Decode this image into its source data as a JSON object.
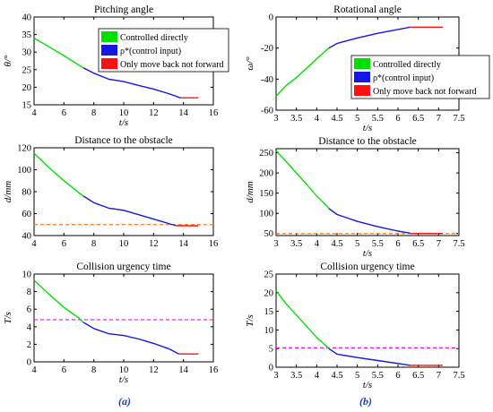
{
  "panel_labels": [
    "(a)",
    "(b)"
  ],
  "colors": {
    "green": "#00e000",
    "blue": "#1515e6",
    "red": "#ff1010",
    "orange_dash": "#ff7a1a",
    "magenta_dash": "#ee10ee"
  },
  "legend_labels": [
    "Controlled directly",
    "ρ*(control input)",
    "Only move back not forward"
  ],
  "chart_data": [
    {
      "id": "a1",
      "type": "line",
      "title": "Pitching angle",
      "xlabel": "t/s",
      "ylabel": "θ/°",
      "xlim": [
        4,
        16
      ],
      "ylim": [
        15,
        40
      ],
      "xticks": [
        4,
        6,
        8,
        10,
        12,
        14,
        16
      ],
      "yticks": [
        15,
        20,
        25,
        30,
        35,
        40
      ],
      "legend": "top-right",
      "series": [
        {
          "name": "Controlled directly",
          "x": [
            4,
            5,
            6,
            7,
            7.3
          ],
          "y": [
            34,
            31.5,
            29,
            26.3,
            25.5
          ]
        },
        {
          "name": "ρ*(control input)",
          "x": [
            7.3,
            8,
            9,
            10,
            11,
            12,
            13,
            13.8
          ],
          "y": [
            25.5,
            24,
            22.3,
            21.6,
            20.5,
            19.5,
            18.2,
            17
          ]
        },
        {
          "name": "Only move back not forward",
          "x": [
            13.8,
            14,
            14.5,
            15
          ],
          "y": [
            17,
            17,
            17,
            17
          ]
        }
      ]
    },
    {
      "id": "b1",
      "type": "line",
      "title": "Rotational angle",
      "xlabel": "t/s",
      "ylabel": "ω/°",
      "xlim": [
        3,
        7.5
      ],
      "ylim": [
        -60,
        0
      ],
      "xticks": [
        3,
        3.5,
        4,
        4.5,
        5,
        5.5,
        6,
        6.5,
        7,
        7.5
      ],
      "yticks": [
        -60,
        -40,
        -20,
        0
      ],
      "legend": "right",
      "series": [
        {
          "name": "Controlled directly",
          "x": [
            3,
            3.25,
            3.5,
            3.75,
            4,
            4.25,
            4.3
          ],
          "y": [
            -51,
            -44,
            -39,
            -33,
            -27,
            -21,
            -20
          ]
        },
        {
          "name": "ρ*(control input)",
          "x": [
            4.3,
            4.5,
            5,
            5.5,
            6,
            6.3
          ],
          "y": [
            -20,
            -17,
            -13.5,
            -10.5,
            -8,
            -6.5
          ]
        },
        {
          "name": "Only move back not forward",
          "x": [
            6.3,
            6.5,
            7,
            7.1
          ],
          "y": [
            -6.5,
            -6.5,
            -6.5,
            -6.5
          ]
        }
      ]
    },
    {
      "id": "a2",
      "type": "line",
      "title": "Distance to the obstacle",
      "xlabel": "",
      "ylabel": "d/mm",
      "xlim": [
        4,
        16
      ],
      "ylim": [
        40,
        120
      ],
      "xticks": [
        4,
        6,
        8,
        10,
        12,
        14,
        16
      ],
      "yticks": [
        40,
        60,
        80,
        100,
        120
      ],
      "threshold": 50,
      "threshold_color": "orange_dash",
      "series": [
        {
          "name": "Controlled directly",
          "x": [
            4,
            5,
            6,
            7,
            7.3
          ],
          "y": [
            115,
            102,
            90,
            79,
            76
          ]
        },
        {
          "name": "ρ*(control input)",
          "x": [
            7.3,
            8,
            9,
            10,
            11,
            12,
            13,
            13.5
          ],
          "y": [
            76,
            70,
            65,
            63,
            59,
            55,
            51,
            49
          ]
        },
        {
          "name": "Only move back not forward",
          "x": [
            13.5,
            14,
            14.5,
            15
          ],
          "y": [
            49,
            49,
            49,
            49
          ]
        }
      ]
    },
    {
      "id": "b2",
      "type": "line",
      "title": "Distance to the obstacle",
      "xlabel": "t/s",
      "ylabel": "d/mm",
      "xlim": [
        3,
        7.5
      ],
      "ylim": [
        45,
        260
      ],
      "xticks": [
        3,
        3.5,
        4,
        4.5,
        5,
        5.5,
        6,
        6.5,
        7,
        7.5
      ],
      "yticks": [
        50,
        100,
        150,
        200,
        250
      ],
      "threshold": 50,
      "threshold_color": "orange_dash",
      "series": [
        {
          "name": "Controlled directly",
          "x": [
            3,
            3.25,
            3.5,
            3.75,
            4,
            4.25,
            4.3
          ],
          "y": [
            255,
            228,
            200,
            172,
            143,
            118,
            112
          ]
        },
        {
          "name": "ρ*(control input)",
          "x": [
            4.3,
            4.5,
            5,
            5.5,
            6,
            6.3
          ],
          "y": [
            112,
            97,
            80,
            67,
            56,
            51
          ]
        },
        {
          "name": "Only move back not forward",
          "x": [
            6.3,
            6.5,
            7,
            7.1
          ],
          "y": [
            50,
            50,
            50,
            50
          ]
        }
      ]
    },
    {
      "id": "a3",
      "type": "line",
      "title": "Collision urgency time",
      "xlabel": "t/s",
      "ylabel": "T/s",
      "xlim": [
        4,
        16
      ],
      "ylim": [
        0,
        10
      ],
      "xticks": [
        4,
        6,
        8,
        10,
        12,
        14,
        16
      ],
      "yticks": [
        0,
        2,
        4,
        6,
        8,
        10
      ],
      "threshold": 4.8,
      "threshold_color": "magenta_dash",
      "series": [
        {
          "name": "Controlled directly",
          "x": [
            4,
            5,
            6,
            7,
            7.3
          ],
          "y": [
            9.3,
            7.7,
            6.2,
            5.0,
            4.5
          ]
        },
        {
          "name": "ρ*(control input)",
          "x": [
            7.3,
            8,
            9,
            10,
            11,
            12,
            13,
            13.7
          ],
          "y": [
            4.5,
            3.8,
            3.2,
            3.0,
            2.6,
            2.1,
            1.5,
            0.9
          ]
        },
        {
          "name": "Only move back not forward",
          "x": [
            13.7,
            14,
            14.5,
            15
          ],
          "y": [
            0.9,
            0.9,
            0.9,
            0.9
          ]
        }
      ]
    },
    {
      "id": "b3",
      "type": "line",
      "title": "Collision urgency time",
      "xlabel": "t/s",
      "ylabel": "T/s",
      "xlim": [
        3,
        7.5
      ],
      "ylim": [
        0,
        25
      ],
      "xticks": [
        3,
        3.5,
        4,
        4.5,
        5,
        5.5,
        6,
        6.5,
        7,
        7.5
      ],
      "yticks": [
        0,
        5,
        10,
        15,
        20,
        25
      ],
      "threshold": 5.2,
      "threshold_color": "magenta_dash",
      "series": [
        {
          "name": "Controlled directly",
          "x": [
            3,
            3.25,
            3.5,
            3.75,
            4,
            4.25,
            4.3
          ],
          "y": [
            20.5,
            17,
            14,
            11,
            8,
            5.5,
            5
          ]
        },
        {
          "name": "ρ*(control input)",
          "x": [
            4.3,
            4.5,
            5,
            5.5,
            6,
            6.3
          ],
          "y": [
            5,
            3.5,
            2.6,
            1.8,
            1.0,
            0.5
          ]
        },
        {
          "name": "Only move back not forward",
          "x": [
            6.3,
            6.5,
            7,
            7.1
          ],
          "y": [
            0.5,
            0.5,
            0.5,
            0.5
          ]
        }
      ]
    }
  ]
}
